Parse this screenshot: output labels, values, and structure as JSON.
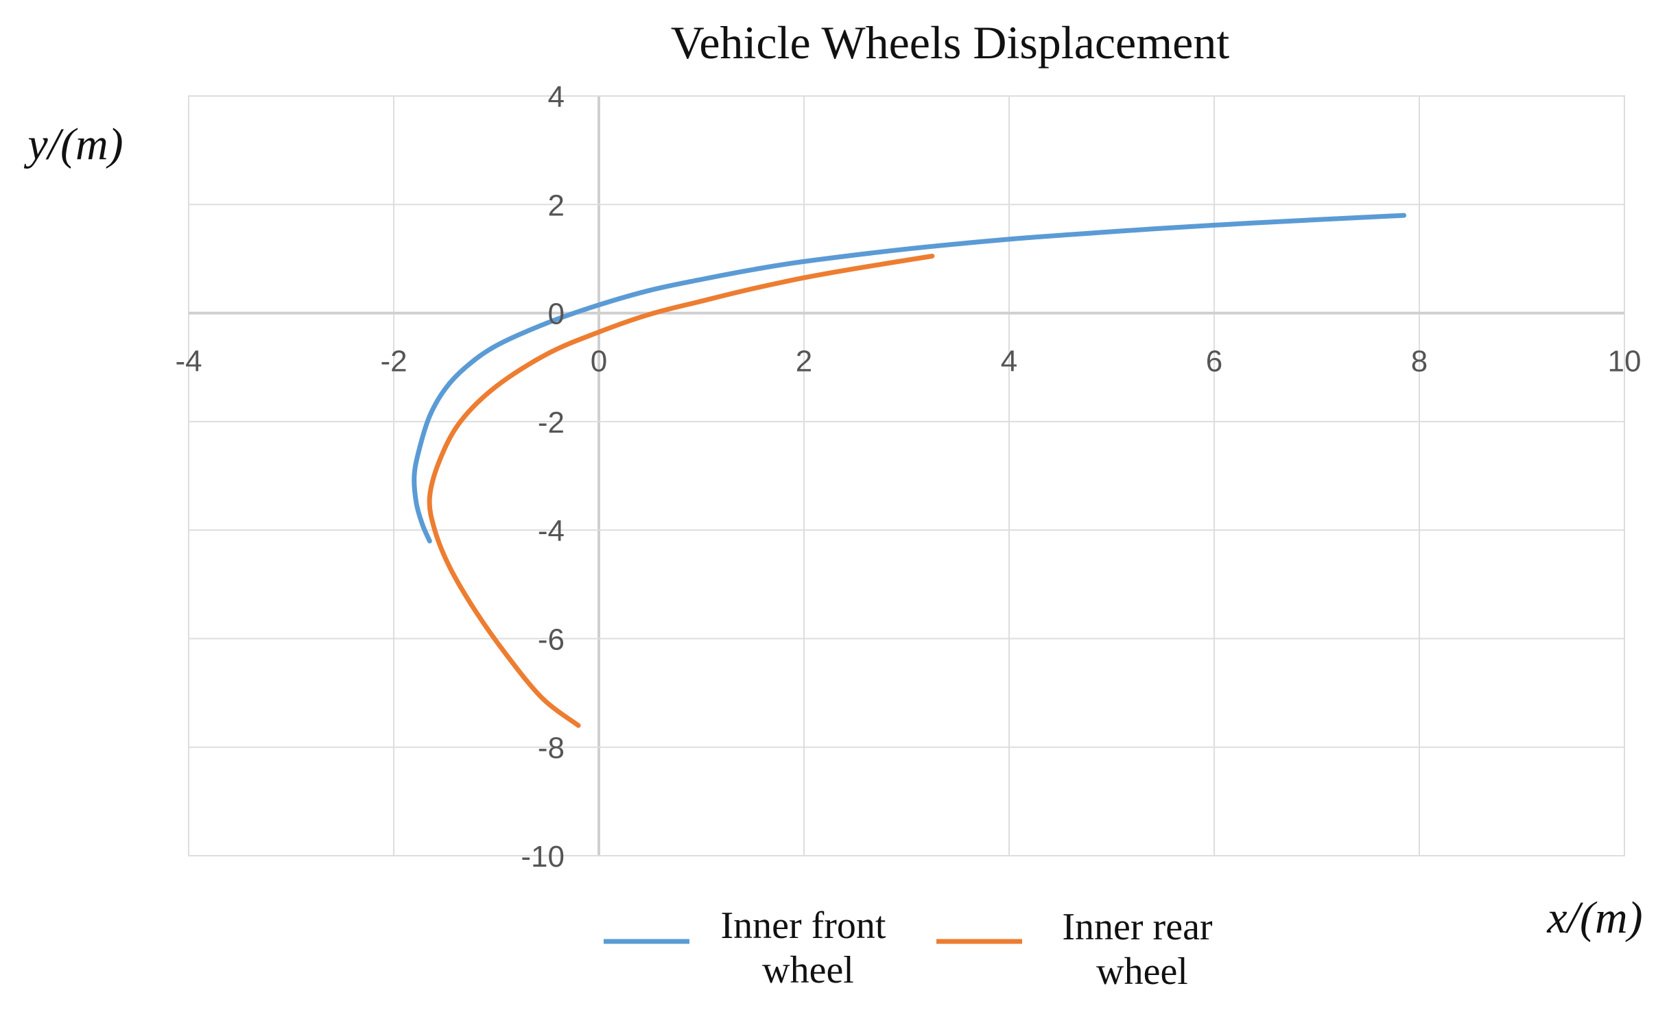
{
  "chart_data": {
    "type": "line",
    "title": "Vehicle Wheels Displacement",
    "xlabel": "x/(m)",
    "ylabel": "y/(m)",
    "xlim": [
      -4,
      10
    ],
    "ylim": [
      -10,
      4
    ],
    "x_ticks": [
      -4,
      -2,
      0,
      2,
      4,
      6,
      8,
      10
    ],
    "y_ticks": [
      4,
      2,
      0,
      -2,
      -4,
      -6,
      -8,
      -10
    ],
    "grid": true,
    "legend_position": "bottom",
    "series": [
      {
        "name": "Inner front wheel",
        "color": "#5b9bd5",
        "points": [
          [
            7.85,
            1.8
          ],
          [
            7.0,
            1.72
          ],
          [
            6.0,
            1.62
          ],
          [
            5.0,
            1.5
          ],
          [
            4.0,
            1.36
          ],
          [
            3.0,
            1.18
          ],
          [
            2.0,
            0.95
          ],
          [
            1.5,
            0.8
          ],
          [
            1.0,
            0.62
          ],
          [
            0.5,
            0.42
          ],
          [
            0.0,
            0.15
          ],
          [
            -0.5,
            -0.18
          ],
          [
            -1.0,
            -0.6
          ],
          [
            -1.3,
            -1.0
          ],
          [
            -1.5,
            -1.4
          ],
          [
            -1.65,
            -1.9
          ],
          [
            -1.75,
            -2.5
          ],
          [
            -1.8,
            -3.0
          ],
          [
            -1.78,
            -3.5
          ],
          [
            -1.72,
            -3.9
          ],
          [
            -1.65,
            -4.2
          ]
        ]
      },
      {
        "name": "Inner rear wheel",
        "color": "#ed7d31",
        "points": [
          [
            3.25,
            1.05
          ],
          [
            2.5,
            0.82
          ],
          [
            2.0,
            0.65
          ],
          [
            1.5,
            0.45
          ],
          [
            1.0,
            0.22
          ],
          [
            0.5,
            -0.02
          ],
          [
            0.0,
            -0.35
          ],
          [
            -0.5,
            -0.75
          ],
          [
            -1.0,
            -1.35
          ],
          [
            -1.35,
            -2.0
          ],
          [
            -1.55,
            -2.7
          ],
          [
            -1.65,
            -3.4
          ],
          [
            -1.6,
            -4.0
          ],
          [
            -1.45,
            -4.7
          ],
          [
            -1.2,
            -5.5
          ],
          [
            -0.9,
            -6.3
          ],
          [
            -0.55,
            -7.1
          ],
          [
            -0.2,
            -7.6
          ]
        ]
      }
    ]
  }
}
